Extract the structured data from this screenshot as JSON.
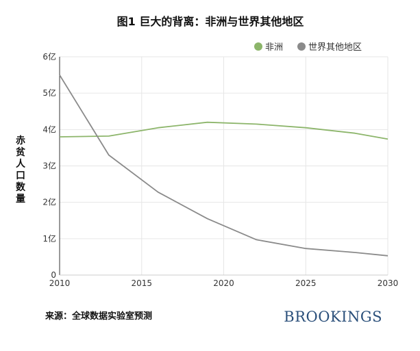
{
  "chart_data": {
    "type": "line",
    "title": "图1 巨大的背离：非洲与世界其他地区",
    "ylabel": "赤贫人口数量",
    "xlabel": "",
    "xlim": [
      2010,
      2030
    ],
    "ylim": [
      0,
      6
    ],
    "x_ticks": [
      "2010",
      "2015",
      "2020",
      "2025",
      "2030"
    ],
    "y_ticks": [
      "0",
      "1亿",
      "2亿",
      "3亿",
      "4亿",
      "5亿",
      "6亿"
    ],
    "grid": true,
    "legend_position": "top-right",
    "series": [
      {
        "name": "非洲",
        "color": "#8cb56a",
        "x": [
          2010,
          2013,
          2016,
          2019,
          2022,
          2025,
          2028,
          2030
        ],
        "values": [
          3.8,
          3.82,
          4.05,
          4.2,
          4.15,
          4.05,
          3.9,
          3.74
        ]
      },
      {
        "name": "世界其他地区",
        "color": "#8a8a8a",
        "x": [
          2010,
          2013,
          2016,
          2019,
          2022,
          2025,
          2028,
          2030
        ],
        "values": [
          5.5,
          3.3,
          2.28,
          1.55,
          0.97,
          0.73,
          0.62,
          0.53
        ]
      }
    ]
  },
  "footer": {
    "source": "来源：全球数据实验室预测",
    "brand": "BROOKINGS"
  }
}
